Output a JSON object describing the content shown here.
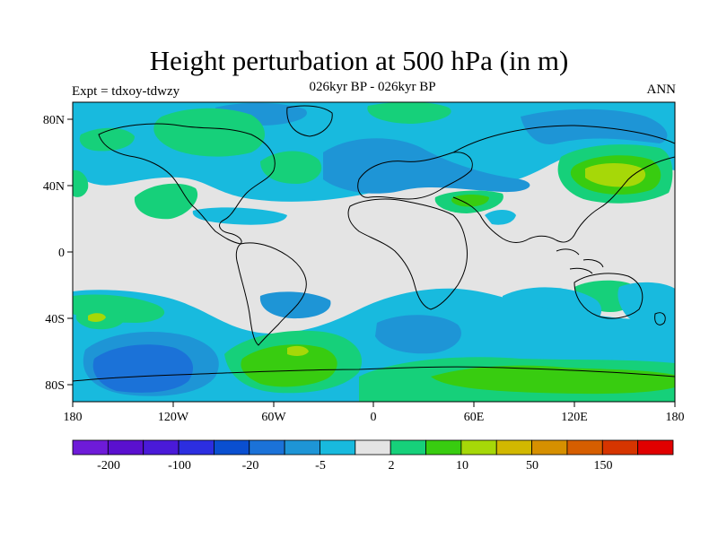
{
  "title": "Height perturbation at 500 hPa (in m)",
  "subtitle_left": "Expt = tdxoy-tdwzy",
  "subtitle_center": "026kyr BP - 026kyr BP",
  "subtitle_right": "ANN",
  "axes": {
    "lon_ticks": [
      "180",
      "120W",
      "60W",
      "0",
      "60E",
      "120E",
      "180"
    ],
    "lat_ticks": [
      "80N",
      "40N",
      "0",
      "40S",
      "80S"
    ]
  },
  "colorbar": {
    "colors": [
      "#6e1bd8",
      "#5a10cf",
      "#4a1ad8",
      "#2c2ee0",
      "#0a4fd0",
      "#1b72d8",
      "#1e95d6",
      "#18bade",
      "#e4e4e4",
      "#16d07a",
      "#38cc10",
      "#a6d808",
      "#d2b800",
      "#d69000",
      "#d65e00",
      "#d63500",
      "#e00000"
    ],
    "labels": [
      "-200",
      "-100",
      "-20",
      "-5",
      "2",
      "10",
      "50",
      "150"
    ]
  },
  "map_colors": {
    "neutral": "#e4e4e4",
    "light_blue": "#18bade",
    "mid_blue": "#1e95d6",
    "blue": "#1b72d8",
    "green": "#16d07a",
    "bright_green": "#38cc10",
    "yellow_green": "#a6d808",
    "coast": "#000000"
  }
}
